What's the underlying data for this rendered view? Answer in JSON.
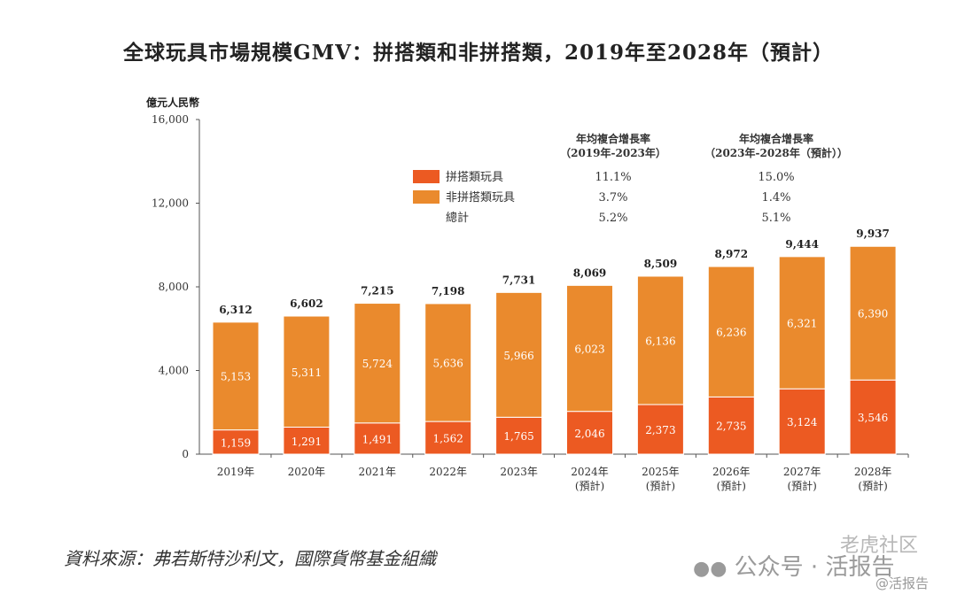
{
  "chart_data": {
    "type": "bar",
    "stacked": true,
    "title": "全球玩具市場規模GMV：拼搭類和非拼搭類，2019年至2028年（預計）",
    "ylabel": "億元人民幣",
    "ylim": [
      0,
      16000
    ],
    "yticks": [
      "0",
      "4,000",
      "8,000",
      "12,000",
      "16,000"
    ],
    "categories": [
      [
        "2019年"
      ],
      [
        "2020年"
      ],
      [
        "2021年"
      ],
      [
        "2022年"
      ],
      [
        "2023年"
      ],
      [
        "2024年",
        "(預計)"
      ],
      [
        "2025年",
        "(預計)"
      ],
      [
        "2026年",
        "(預計)"
      ],
      [
        "2027年",
        "(預計)"
      ],
      [
        "2028年",
        "(預計)"
      ]
    ],
    "series": [
      {
        "name": "拼搭類玩具",
        "color": "#ec5a22",
        "values": [
          1159,
          1291,
          1491,
          1562,
          1765,
          2046,
          2373,
          2735,
          3124,
          3546
        ],
        "labels": [
          "1,159",
          "1,291",
          "1,491",
          "1,562",
          "1,765",
          "2,046",
          "2,373",
          "2,735",
          "3,124",
          "3,546"
        ]
      },
      {
        "name": "非拼搭類玩具",
        "color": "#ea8a2d",
        "values": [
          5153,
          5311,
          5724,
          5636,
          5966,
          6023,
          6136,
          6236,
          6321,
          6390
        ],
        "labels": [
          "5,153",
          "5,311",
          "5,724",
          "5,636",
          "5,966",
          "6,023",
          "6,136",
          "6,236",
          "6,321",
          "6,390"
        ]
      }
    ],
    "totals": [
      "6,312",
      "6,602",
      "7,215",
      "7,198",
      "7,731",
      "8,069",
      "8,509",
      "8,972",
      "9,444",
      "9,937"
    ],
    "totals_values": [
      6312,
      6602,
      7215,
      7198,
      7731,
      8069,
      8509,
      8972,
      9444,
      9937
    ],
    "cagr_table": {
      "headers": [
        [
          "年均複合增長率",
          "（2019年-2023年）"
        ],
        [
          "年均複合增長率",
          "（2023年-2028年（預計））"
        ]
      ],
      "rows": [
        {
          "label": "拼搭類玩具",
          "swatch": "#ec5a22",
          "v1": "11.1%",
          "v2": "15.0%"
        },
        {
          "label": "非拼搭類玩具",
          "swatch": "#ea8a2d",
          "v1": "3.7%",
          "v2": "1.4%"
        },
        {
          "label": "總計",
          "swatch": "",
          "v1": "5.2%",
          "v2": "5.1%"
        }
      ]
    },
    "legend": "top-right",
    "grid": false
  },
  "source": "資料來源：弗若斯特沙利文，國際貨幣基金組織",
  "watermark": {
    "main": "公众号 · 活报告",
    "community": "老虎社区",
    "handle": "@活报告"
  }
}
